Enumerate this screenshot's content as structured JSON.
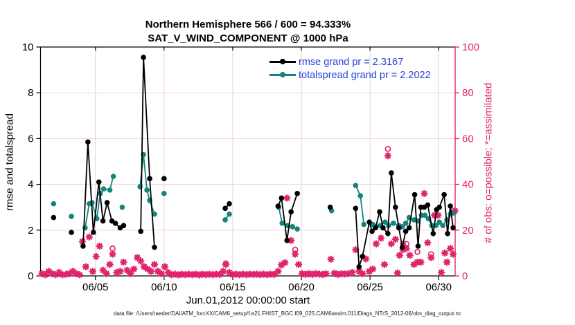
{
  "title": {
    "line1": "Northern Hemisphere 566 / 600 = 94.333%",
    "line2": "SAT_V_WIND_COMPONENT @ 1000 hPa"
  },
  "legend": {
    "rmse_label": "rmse grand pr = 2.3167",
    "totalspread_label": "totalspread grand pr = 2.2022",
    "text_color": "#2440d9"
  },
  "footer": {
    "datafile": "data file: /Users/raeder/DAI/ATM_forcXX/CAM6_setup/f.e21.FHIST_BGC.f09_025.CAM6assim.011/Diags_NTrS_2012-06/obs_diag_output.nc"
  },
  "chart_data": {
    "type": "line",
    "title": "Northern Hemisphere 566 / 600 = 94.333%",
    "subtitle": "SAT_V_WIND_COMPONENT @ 1000 hPa",
    "xlabel": "Jun.01,2012 00:00:00 start",
    "ylabel_left": "rmse and totalspread",
    "ylabel_right": "# of obs: o=possible; *=assimilated",
    "xlim": [
      0,
      30.2
    ],
    "ylim_left": [
      0,
      10
    ],
    "ylim_right": [
      0,
      100
    ],
    "x_ticks": {
      "values": [
        4,
        9,
        14,
        19,
        24,
        29
      ],
      "labels": [
        "06/05",
        "06/10",
        "06/15",
        "06/20",
        "06/25",
        "06/30"
      ]
    },
    "y_left_ticks": [
      0,
      2,
      4,
      6,
      8,
      10
    ],
    "y_right_ticks": [
      0,
      20,
      40,
      60,
      80,
      100
    ],
    "style": {
      "black": "#000000",
      "teal": "#12837d",
      "pink": "#e0246b",
      "grid_h": "#f6cfd9",
      "grid_v": "#e3d2d8"
    },
    "series": [
      {
        "name": "assimilated",
        "axis": "right",
        "color": "#e0246b",
        "marker": "asterisk",
        "line": false,
        "points": [
          [
            0.1,
            1
          ],
          [
            0.35,
            0.5
          ],
          [
            0.6,
            2
          ],
          [
            0.85,
            1
          ],
          [
            1.1,
            0.5
          ],
          [
            1.35,
            1.5
          ],
          [
            1.6,
            0.5
          ],
          [
            1.85,
            0.7
          ],
          [
            2.1,
            1
          ],
          [
            2.35,
            2
          ],
          [
            2.6,
            1
          ],
          [
            2.85,
            0.5
          ],
          [
            3.05,
            15
          ],
          [
            3.3,
            4
          ],
          [
            3.55,
            17
          ],
          [
            3.8,
            2
          ],
          [
            4.05,
            8.5
          ],
          [
            4.3,
            13
          ],
          [
            4.55,
            2.5
          ],
          [
            4.8,
            1
          ],
          [
            5.05,
            5
          ],
          [
            5.25,
            9.5
          ],
          [
            5.55,
            1.5
          ],
          [
            5.8,
            2
          ],
          [
            6.05,
            6
          ],
          [
            6.3,
            2.5
          ],
          [
            6.55,
            1
          ],
          [
            6.8,
            3
          ],
          [
            7.05,
            8
          ],
          [
            7.3,
            6.5
          ],
          [
            7.55,
            4
          ],
          [
            7.8,
            3
          ],
          [
            8.05,
            2
          ],
          [
            8.3,
            5
          ],
          [
            8.55,
            2
          ],
          [
            8.8,
            1
          ],
          [
            9.05,
            4
          ],
          [
            9.3,
            1.5
          ],
          [
            9.55,
            0.5
          ],
          [
            9.8,
            0.8
          ],
          [
            10.05,
            0.4
          ],
          [
            10.3,
            0.8
          ],
          [
            10.55,
            0.5
          ],
          [
            10.8,
            0.8
          ],
          [
            11.05,
            0.5
          ],
          [
            11.3,
            0.8
          ],
          [
            11.55,
            0.4
          ],
          [
            11.8,
            0.8
          ],
          [
            12.05,
            0.5
          ],
          [
            12.3,
            0.8
          ],
          [
            12.55,
            0.5
          ],
          [
            12.8,
            0.8
          ],
          [
            13.05,
            0.6
          ],
          [
            13.3,
            2
          ],
          [
            13.5,
            5
          ],
          [
            13.75,
            1.5
          ],
          [
            14,
            0.5
          ],
          [
            14.25,
            0.8
          ],
          [
            14.5,
            0.5
          ],
          [
            14.75,
            0.8
          ],
          [
            15,
            0.5
          ],
          [
            15.25,
            0.8
          ],
          [
            15.5,
            0.6
          ],
          [
            15.75,
            0.8
          ],
          [
            16,
            0.5
          ],
          [
            16.25,
            0.8
          ],
          [
            16.5,
            0.5
          ],
          [
            16.75,
            0.8
          ],
          [
            17,
            0.6
          ],
          [
            17.3,
            2
          ],
          [
            17.55,
            4.8
          ],
          [
            17.8,
            5.8
          ],
          [
            17.95,
            34
          ],
          [
            18.25,
            15.5
          ],
          [
            18.55,
            9.5
          ],
          [
            18.8,
            5
          ],
          [
            19.05,
            1
          ],
          [
            19.3,
            0.6
          ],
          [
            19.55,
            1
          ],
          [
            19.8,
            0.6
          ],
          [
            20.05,
            1
          ],
          [
            20.3,
            0.8
          ],
          [
            20.55,
            0.6
          ],
          [
            20.8,
            1
          ],
          [
            21.15,
            7.3
          ],
          [
            21.4,
            1.2
          ],
          [
            21.65,
            0.6
          ],
          [
            21.9,
            1
          ],
          [
            22.15,
            0.8
          ],
          [
            22.4,
            1
          ],
          [
            22.7,
            1.5
          ],
          [
            22.95,
            11.4
          ],
          [
            23.2,
            2
          ],
          [
            23.45,
            1
          ],
          [
            23.7,
            7.4
          ],
          [
            23.95,
            2
          ],
          [
            24.2,
            3
          ],
          [
            24.45,
            14
          ],
          [
            24.8,
            16.5
          ],
          [
            25.05,
            5
          ],
          [
            25.3,
            52.5
          ],
          [
            25.55,
            14
          ],
          [
            25.85,
            16
          ],
          [
            26,
            1.3
          ],
          [
            26.15,
            9
          ],
          [
            26.4,
            11.5
          ],
          [
            26.65,
            12
          ],
          [
            26.9,
            9
          ],
          [
            27.2,
            5
          ],
          [
            27.45,
            6
          ],
          [
            27.7,
            6
          ],
          [
            27.95,
            36
          ],
          [
            28.2,
            14.5
          ],
          [
            28.45,
            8
          ],
          [
            28.7,
            26.5
          ],
          [
            28.95,
            26.5
          ],
          [
            29.2,
            1.5
          ],
          [
            29.45,
            10
          ],
          [
            29.6,
            6
          ],
          [
            29.85,
            12
          ],
          [
            30.05,
            9.5
          ],
          [
            30.18,
            28.5
          ]
        ]
      },
      {
        "name": "possible",
        "axis": "right",
        "color": "#e0246b",
        "marker": "open-circle",
        "line": false,
        "points": [
          [
            5.25,
            12
          ],
          [
            13.5,
            5.5
          ],
          [
            18.55,
            11.5
          ],
          [
            25.3,
            55.5
          ],
          [
            26.4,
            14
          ],
          [
            26.65,
            14
          ],
          [
            27.45,
            10.5
          ],
          [
            28.45,
            9.5
          ]
        ]
      },
      {
        "name": "totalspread",
        "axis": "left",
        "color": "#12837d",
        "marker": "circle",
        "line": true,
        "points": [
          [
            0.95,
            3.15
          ],
          [
            2.25,
            2.6
          ],
          [
            3.25,
            2.1
          ],
          [
            3.55,
            3.15
          ],
          [
            3.75,
            3.2
          ],
          [
            4.1,
            2.5
          ],
          [
            4.35,
            3.6
          ],
          [
            4.6,
            3.8
          ],
          [
            5.05,
            3.75
          ],
          [
            5.3,
            4.35
          ],
          [
            5.95,
            3.0
          ],
          [
            7.25,
            3.9
          ],
          [
            7.5,
            5.3
          ],
          [
            7.75,
            3.75
          ],
          [
            7.95,
            3.3
          ],
          [
            8.3,
            2.7
          ],
          [
            9.0,
            3.6
          ],
          [
            13.45,
            2.45
          ],
          [
            13.75,
            2.7
          ],
          [
            17.35,
            3.0
          ],
          [
            17.6,
            2.3
          ],
          [
            18.0,
            2.2
          ],
          [
            18.35,
            2.15
          ],
          [
            18.7,
            2.05
          ],
          [
            21.2,
            2.85
          ],
          [
            22.95,
            3.95
          ],
          [
            23.3,
            3.5
          ],
          [
            23.55,
            2.25
          ],
          [
            24.2,
            2.25
          ],
          [
            24.45,
            2.15
          ],
          [
            24.75,
            2.2
          ],
          [
            25.1,
            2.35
          ],
          [
            25.35,
            2.2
          ],
          [
            25.7,
            2.3
          ],
          [
            26.1,
            2.2
          ],
          [
            26.35,
            2.15
          ],
          [
            26.6,
            2.3
          ],
          [
            26.85,
            2.55
          ],
          [
            27.2,
            2.45
          ],
          [
            27.5,
            2.4
          ],
          [
            27.75,
            2.65
          ],
          [
            28.0,
            2.65
          ],
          [
            28.25,
            2.5
          ],
          [
            28.5,
            2.2
          ],
          [
            28.8,
            2.2
          ],
          [
            29.05,
            2.35
          ],
          [
            29.3,
            2.2
          ],
          [
            29.6,
            2.45
          ],
          [
            29.85,
            2.7
          ],
          [
            30.1,
            2.75
          ]
        ]
      },
      {
        "name": "rmse",
        "axis": "left",
        "color": "#000000",
        "marker": "circle",
        "line": true,
        "points": [
          [
            0.95,
            2.55
          ],
          [
            2.25,
            1.9
          ],
          [
            3.1,
            1.3
          ],
          [
            3.45,
            5.85
          ],
          [
            3.85,
            1.9
          ],
          [
            4.25,
            4.1
          ],
          [
            4.55,
            2.4
          ],
          [
            4.85,
            3.2
          ],
          [
            5.2,
            2.4
          ],
          [
            5.45,
            2.3
          ],
          [
            5.8,
            2.1
          ],
          [
            6.05,
            2.2
          ],
          [
            7.3,
            1.95
          ],
          [
            7.5,
            9.55
          ],
          [
            7.95,
            4.25
          ],
          [
            8.3,
            1.25
          ],
          [
            9.0,
            4.25
          ],
          [
            13.45,
            2.95
          ],
          [
            13.75,
            3.15
          ],
          [
            17.3,
            3.05
          ],
          [
            17.55,
            3.4
          ],
          [
            17.95,
            1.55
          ],
          [
            18.25,
            2.8
          ],
          [
            18.7,
            3.6
          ],
          [
            21.1,
            3.0
          ],
          [
            22.95,
            2.95
          ],
          [
            23.2,
            0.4
          ],
          [
            23.45,
            0.85
          ],
          [
            23.95,
            2.35
          ],
          [
            24.15,
            1.95
          ],
          [
            24.4,
            2.1
          ],
          [
            24.7,
            2.8
          ],
          [
            24.95,
            2.1
          ],
          [
            25.3,
            1.85
          ],
          [
            25.55,
            4.5
          ],
          [
            25.85,
            3.0
          ],
          [
            26.1,
            2.1
          ],
          [
            26.35,
            1.25
          ],
          [
            26.6,
            1.95
          ],
          [
            26.85,
            2.1
          ],
          [
            27.25,
            3.55
          ],
          [
            27.5,
            1.3
          ],
          [
            27.7,
            3.0
          ],
          [
            27.95,
            3.0
          ],
          [
            28.2,
            3.1
          ],
          [
            28.6,
            1.85
          ],
          [
            28.85,
            2.9
          ],
          [
            29.05,
            3.0
          ],
          [
            29.4,
            3.55
          ],
          [
            29.65,
            1.85
          ],
          [
            29.85,
            3.05
          ],
          [
            30.05,
            2.1
          ]
        ]
      }
    ],
    "legend_entries": [
      "rmse grand pr = 2.3167",
      "totalspread grand pr = 2.2022"
    ],
    "legend_position": "upper right inside",
    "grid": true
  }
}
